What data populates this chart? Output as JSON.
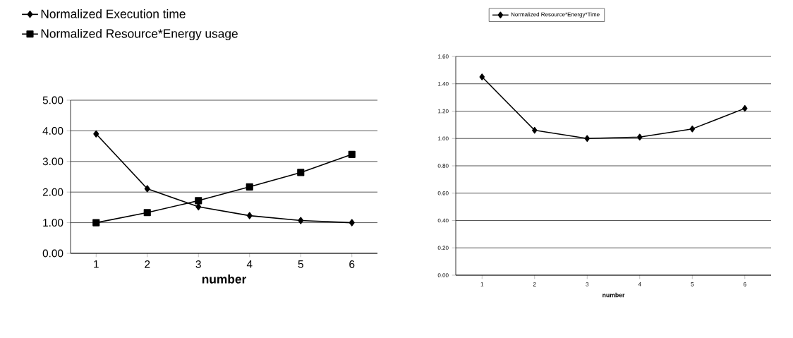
{
  "chart_data": [
    {
      "type": "line",
      "categories": [
        "1",
        "2",
        "3",
        "4",
        "5",
        "6"
      ],
      "xlabel": "number",
      "series": [
        {
          "name": "Normalized Execution time",
          "color": "#000000",
          "marker": "diamond",
          "values": [
            3.9,
            2.11,
            1.52,
            1.23,
            1.07,
            1.0
          ]
        },
        {
          "name": "Normalized Resource*Energy usage",
          "color": "#000000",
          "marker": "square",
          "values": [
            1.0,
            1.33,
            1.72,
            2.17,
            2.64,
            3.23
          ]
        }
      ],
      "ylim": [
        0,
        5
      ],
      "yticks": [
        {
          "value": 0,
          "label": "0.00"
        },
        {
          "value": 1,
          "label": "1.00"
        },
        {
          "value": 2,
          "label": "2.00"
        },
        {
          "value": 3,
          "label": "3.00"
        },
        {
          "value": 4,
          "label": "4.00"
        },
        {
          "value": 5,
          "label": "5.00"
        }
      ],
      "grid": "y",
      "legend": "top",
      "line_style": "solid"
    },
    {
      "type": "line",
      "categories": [
        "1",
        "2",
        "3",
        "4",
        "5",
        "6"
      ],
      "xlabel": "number",
      "series": [
        {
          "name": "Normalized Resource*Energy*Time",
          "color": "#000000",
          "marker": "diamond",
          "values": [
            1.45,
            1.06,
            1.0,
            1.01,
            1.07,
            1.22
          ]
        }
      ],
      "ylim": [
        0,
        1.6
      ],
      "yticks": [
        {
          "value": 0,
          "label": "0.00"
        },
        {
          "value": 0.2,
          "label": "0.20"
        },
        {
          "value": 0.4,
          "label": "0.40"
        },
        {
          "value": 0.6,
          "label": "0.60"
        },
        {
          "value": 0.8,
          "label": "0.80"
        },
        {
          "value": 1.0,
          "label": "1.00"
        },
        {
          "value": 1.2,
          "label": "1.20"
        },
        {
          "value": 1.4,
          "label": "1.40"
        },
        {
          "value": 1.6,
          "label": "1.60"
        }
      ],
      "grid": "y",
      "legend": "top",
      "line_style": "solid"
    }
  ]
}
